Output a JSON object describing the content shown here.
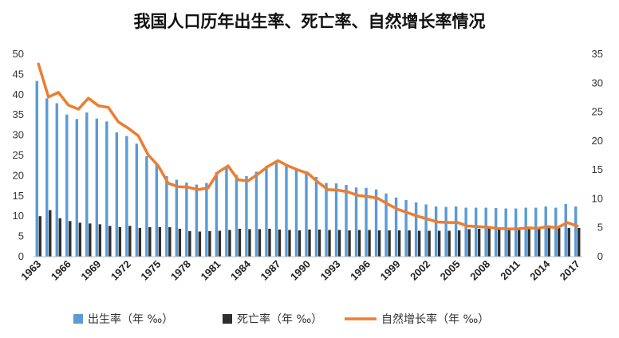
{
  "chart_data": {
    "type": "bar",
    "title": "我国人口历年出生率、死亡率、自然增长率情况",
    "years": [
      1963,
      1964,
      1965,
      1966,
      1967,
      1968,
      1969,
      1970,
      1971,
      1972,
      1973,
      1974,
      1975,
      1976,
      1977,
      1978,
      1979,
      1980,
      1981,
      1982,
      1983,
      1984,
      1985,
      1986,
      1987,
      1988,
      1989,
      1990,
      1991,
      1992,
      1993,
      1994,
      1995,
      1996,
      1997,
      1998,
      1999,
      2000,
      2001,
      2002,
      2003,
      2004,
      2005,
      2006,
      2007,
      2008,
      2009,
      2010,
      2011,
      2012,
      2013,
      2014,
      2015,
      2016,
      2017
    ],
    "x_tick_labels": [
      "1963",
      "1966",
      "1969",
      "1972",
      "1975",
      "1978",
      "1981",
      "1984",
      "1987",
      "1990",
      "1993",
      "1996",
      "1999",
      "2002",
      "2005",
      "2008",
      "2011",
      "2014",
      "2017"
    ],
    "x_tick_years": [
      1963,
      1966,
      1969,
      1972,
      1975,
      1978,
      1981,
      1984,
      1987,
      1990,
      1993,
      1996,
      1999,
      2002,
      2005,
      2008,
      2011,
      2014,
      2017
    ],
    "left_axis": {
      "min": 0,
      "max": 50,
      "step": 5,
      "ticks": [
        "0",
        "5",
        "10",
        "15",
        "20",
        "25",
        "30",
        "35",
        "40",
        "45",
        "50"
      ]
    },
    "right_axis": {
      "min": 0,
      "max": 35,
      "step": 5,
      "ticks": [
        "0",
        "5",
        "10",
        "15",
        "20",
        "25",
        "30",
        "35"
      ]
    },
    "grid": false,
    "legend_position": "bottom",
    "series": [
      {
        "name": "出生率（年 ‰）",
        "kind": "bar",
        "axis": "left",
        "color": "#5B9BD5",
        "values": [
          43.4,
          39.1,
          37.9,
          35.1,
          34.0,
          35.6,
          34.1,
          33.4,
          30.7,
          29.8,
          27.9,
          24.8,
          23.0,
          19.9,
          19.0,
          18.3,
          17.8,
          18.2,
          20.9,
          22.3,
          20.2,
          19.9,
          21.0,
          22.4,
          23.3,
          22.4,
          21.6,
          21.1,
          19.7,
          18.2,
          18.1,
          17.7,
          17.1,
          17.0,
          16.6,
          15.6,
          14.6,
          14.0,
          13.4,
          12.9,
          12.4,
          12.3,
          12.4,
          12.1,
          12.1,
          12.1,
          12.0,
          11.9,
          11.9,
          12.1,
          12.1,
          12.4,
          12.1,
          13.0,
          12.4
        ]
      },
      {
        "name": "死亡率（年 ‰）",
        "kind": "bar",
        "axis": "left",
        "color": "#2E2E2E",
        "values": [
          10.0,
          11.5,
          9.5,
          8.8,
          8.4,
          8.2,
          8.0,
          7.6,
          7.3,
          7.6,
          7.1,
          7.3,
          7.3,
          7.3,
          6.9,
          6.3,
          6.2,
          6.3,
          6.4,
          6.6,
          6.9,
          6.8,
          6.8,
          6.9,
          6.7,
          6.6,
          6.5,
          6.7,
          6.7,
          6.6,
          6.6,
          6.5,
          6.6,
          6.6,
          6.5,
          6.5,
          6.5,
          6.5,
          6.4,
          6.4,
          6.4,
          6.4,
          6.5,
          6.8,
          6.9,
          7.1,
          7.1,
          7.1,
          7.1,
          7.2,
          7.2,
          7.2,
          7.1,
          7.1,
          7.1
        ]
      },
      {
        "name": "自然增长率（年 ‰）",
        "kind": "line",
        "axis": "right",
        "color": "#ED7D31",
        "values": [
          33.3,
          27.6,
          28.4,
          26.2,
          25.5,
          27.4,
          26.1,
          25.8,
          23.3,
          22.2,
          20.9,
          17.6,
          15.7,
          12.7,
          12.1,
          12.0,
          11.6,
          11.9,
          14.6,
          15.7,
          13.3,
          13.1,
          14.3,
          15.6,
          16.6,
          15.7,
          15.0,
          14.4,
          12.9,
          11.6,
          11.5,
          11.2,
          10.6,
          10.4,
          10.1,
          9.1,
          8.2,
          7.6,
          7.0,
          6.5,
          6.0,
          5.9,
          5.9,
          5.3,
          5.2,
          5.1,
          4.9,
          4.8,
          4.8,
          5.0,
          4.9,
          5.2,
          5.0,
          5.9,
          5.3
        ]
      }
    ]
  }
}
